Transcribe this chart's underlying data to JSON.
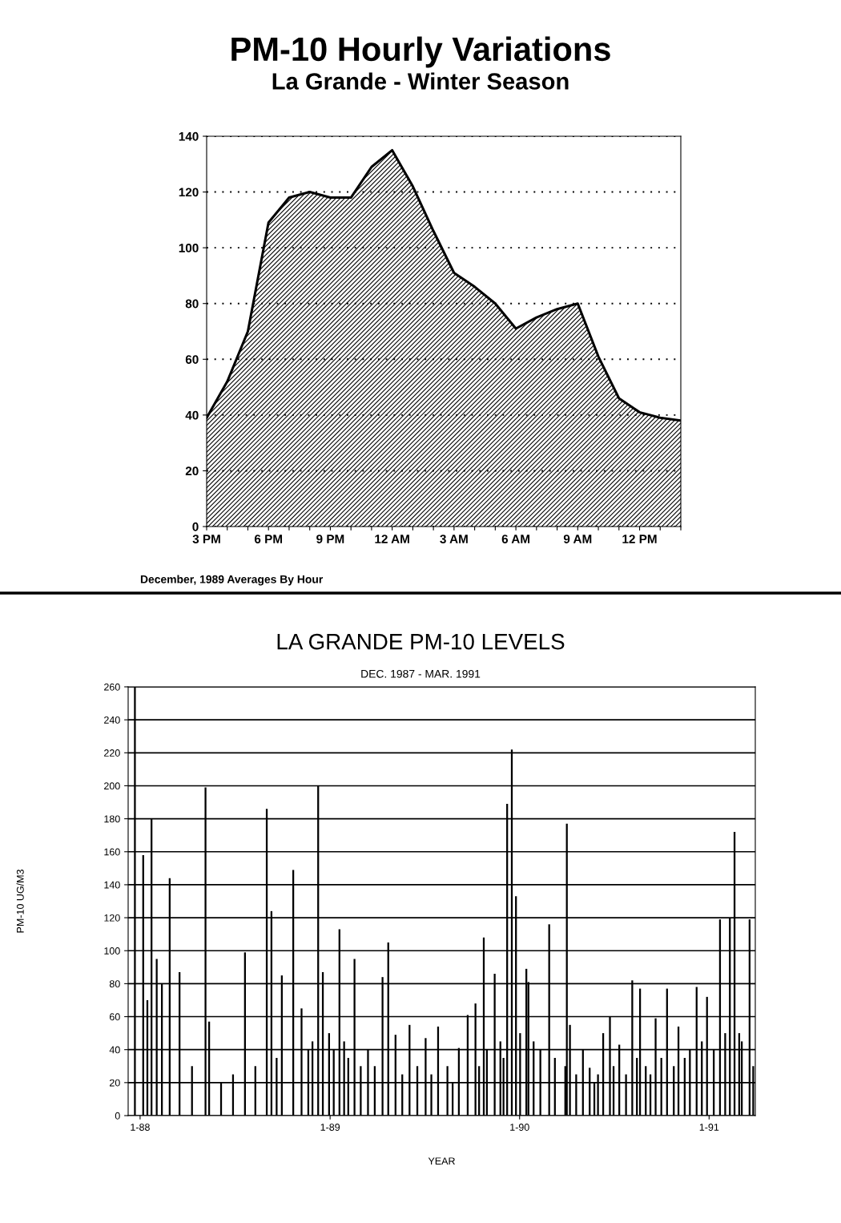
{
  "chart_data": [
    {
      "type": "area",
      "title": "PM-10 Hourly Variations",
      "subtitle": "La Grande - Winter Season",
      "annotations": [
        "December, 1989 Averages By Hour"
      ],
      "categories": [
        "3 PM",
        null,
        null,
        "6 PM",
        null,
        null,
        "9 PM",
        null,
        null,
        "12 AM",
        null,
        null,
        "3 AM",
        null,
        null,
        "6 AM",
        null,
        null,
        "9 AM",
        null,
        null,
        "12 PM",
        null,
        null
      ],
      "series": [
        {
          "color": "#000000",
          "values": [
            39,
            52,
            70,
            109,
            118,
            120,
            118,
            118,
            129,
            135,
            122,
            106,
            91,
            86,
            80,
            71,
            75,
            78,
            80,
            61,
            46,
            41,
            39,
            38
          ]
        }
      ],
      "ylim": [
        0,
        140
      ],
      "yticks": [
        0,
        20,
        40,
        60,
        80,
        100,
        120,
        140
      ],
      "grid": "y"
    },
    {
      "type": "bar",
      "title": "LA GRANDE PM-10 LEVELS",
      "subtitle": "DEC. 1987 - MAR. 1991",
      "xlabel": "YEAR",
      "ylabel": "PM-10 UG/M3",
      "x": [
        "1987-12-22",
        "1988-01-07",
        "1988-01-15",
        "1988-01-23",
        "1988-02-02",
        "1988-02-12",
        "1988-02-27",
        "1988-03-17",
        "1988-04-10",
        "1988-05-06",
        "1988-05-13",
        "1988-06-05",
        "1988-06-28",
        "1988-07-21",
        "1988-08-10",
        "1988-09-01",
        "1988-09-10",
        "1988-09-20",
        "1988-09-30",
        "1988-10-22",
        "1988-11-07",
        "1988-11-20",
        "1988-11-28",
        "1988-12-09",
        "1988-12-18",
        "1988-12-30",
        "1989-01-08",
        "1989-01-19",
        "1989-01-28",
        "1989-02-05",
        "1989-02-17",
        "1989-03-01",
        "1989-03-15",
        "1989-03-28",
        "1989-04-12",
        "1989-04-23",
        "1989-05-07",
        "1989-05-20",
        "1989-06-03",
        "1989-06-18",
        "1989-07-04",
        "1989-07-15",
        "1989-07-28",
        "1989-08-15",
        "1989-08-25",
        "1989-09-06",
        "1989-09-23",
        "1989-10-08",
        "1989-10-15",
        "1989-10-24",
        "1989-10-30",
        "1989-11-14",
        "1989-11-25",
        "1989-12-01",
        "1989-12-08",
        "1989-12-17",
        "1989-12-25",
        "1990-01-02",
        "1990-01-14",
        "1990-01-18",
        "1990-01-28",
        "1990-02-10",
        "1990-02-27",
        "1990-03-10",
        "1990-03-30",
        "1990-04-02",
        "1990-04-08",
        "1990-04-20",
        "1990-05-03",
        "1990-05-16",
        "1990-05-25",
        "1990-06-01",
        "1990-06-11",
        "1990-06-24",
        "1990-07-01",
        "1990-07-12",
        "1990-07-25",
        "1990-08-06",
        "1990-08-15",
        "1990-08-21",
        "1990-09-01",
        "1990-09-10",
        "1990-09-20",
        "1990-10-01",
        "1990-10-12",
        "1990-10-25",
        "1990-11-03",
        "1990-11-15",
        "1990-11-25",
        "1990-12-08",
        "1990-12-18",
        "1990-12-28",
        "1991-01-10",
        "1991-01-22",
        "1991-02-01",
        "1991-02-10",
        "1991-02-19",
        "1991-02-28",
        "1991-03-05",
        "1991-03-20",
        "1991-03-27"
      ],
      "series": [
        {
          "color": "#000000",
          "values": [
            260,
            158,
            70,
            180,
            95,
            80,
            144,
            87,
            30,
            199,
            57,
            20,
            25,
            99,
            30,
            186,
            124,
            35,
            85,
            149,
            65,
            40,
            45,
            200,
            87,
            50,
            40,
            113,
            45,
            35,
            95,
            30,
            40,
            30,
            84,
            105,
            49,
            25,
            55,
            30,
            47,
            25,
            54,
            30,
            20,
            41,
            61,
            68,
            30,
            108,
            40,
            86,
            45,
            35,
            189,
            222,
            133,
            50,
            89,
            81,
            45,
            40,
            116,
            35,
            30,
            177,
            55,
            25,
            40,
            29,
            20,
            25,
            50,
            60,
            30,
            43,
            25,
            82,
            35,
            77,
            30,
            25,
            59,
            35,
            77,
            30,
            54,
            35,
            40,
            78,
            45,
            72,
            40,
            119,
            50,
            120,
            172,
            50,
            45,
            119,
            30
          ]
        }
      ],
      "xlim": [
        "1987-12-09",
        "1991-03-31"
      ],
      "xticks": [
        {
          "value": "1988-01-01",
          "label": "1-88"
        },
        {
          "value": "1989-01-01",
          "label": "1-89"
        },
        {
          "value": "1990-01-01",
          "label": "1-90"
        },
        {
          "value": "1991-01-01",
          "label": "1-91"
        }
      ],
      "ylim": [
        0,
        260
      ],
      "yticks": [
        0,
        20,
        40,
        60,
        80,
        100,
        120,
        140,
        160,
        180,
        200,
        220,
        240,
        260
      ],
      "grid": "y"
    }
  ]
}
